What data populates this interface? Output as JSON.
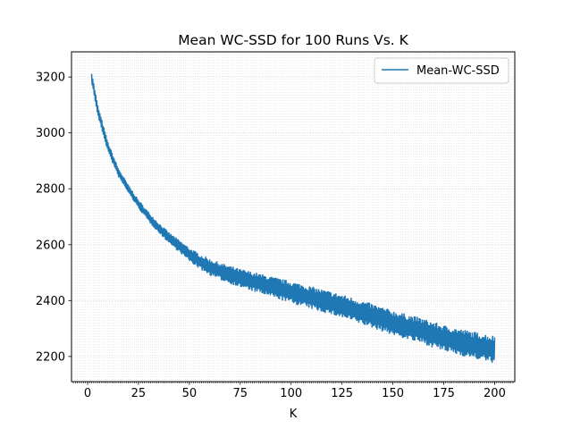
{
  "chart_data": {
    "type": "line",
    "title": "Mean WC-SSD for 100 Runs Vs. K",
    "xlabel": "K",
    "ylabel": "",
    "xlim": [
      -7.9,
      209.9
    ],
    "ylim": [
      2110,
      3290
    ],
    "xticks": [
      0,
      25,
      50,
      75,
      100,
      125,
      150,
      175,
      200
    ],
    "yticks": [
      2200,
      2400,
      2600,
      2800,
      3000,
      3200
    ],
    "grid": true,
    "legend_position": "top-right",
    "series": [
      {
        "name": "Mean-WC-SSD",
        "color": "#1f77b4",
        "x_start": 2,
        "x_end": 200,
        "trend_anchors": [
          [
            2,
            3200
          ],
          [
            5,
            3080
          ],
          [
            10,
            2950
          ],
          [
            15,
            2860
          ],
          [
            20,
            2800
          ],
          [
            25,
            2745
          ],
          [
            30,
            2700
          ],
          [
            35,
            2660
          ],
          [
            40,
            2625
          ],
          [
            45,
            2595
          ],
          [
            50,
            2565
          ],
          [
            55,
            2540
          ],
          [
            60,
            2520
          ],
          [
            65,
            2505
          ],
          [
            75,
            2480
          ],
          [
            85,
            2460
          ],
          [
            100,
            2430
          ],
          [
            115,
            2400
          ],
          [
            125,
            2380
          ],
          [
            140,
            2345
          ],
          [
            150,
            2320
          ],
          [
            165,
            2290
          ],
          [
            175,
            2265
          ],
          [
            190,
            2240
          ],
          [
            200,
            2225
          ]
        ],
        "oscillation_amplitude_anchors": [
          [
            2,
            20
          ],
          [
            20,
            15
          ],
          [
            40,
            20
          ],
          [
            60,
            30
          ],
          [
            100,
            40
          ],
          [
            150,
            45
          ],
          [
            200,
            50
          ]
        ]
      }
    ]
  }
}
